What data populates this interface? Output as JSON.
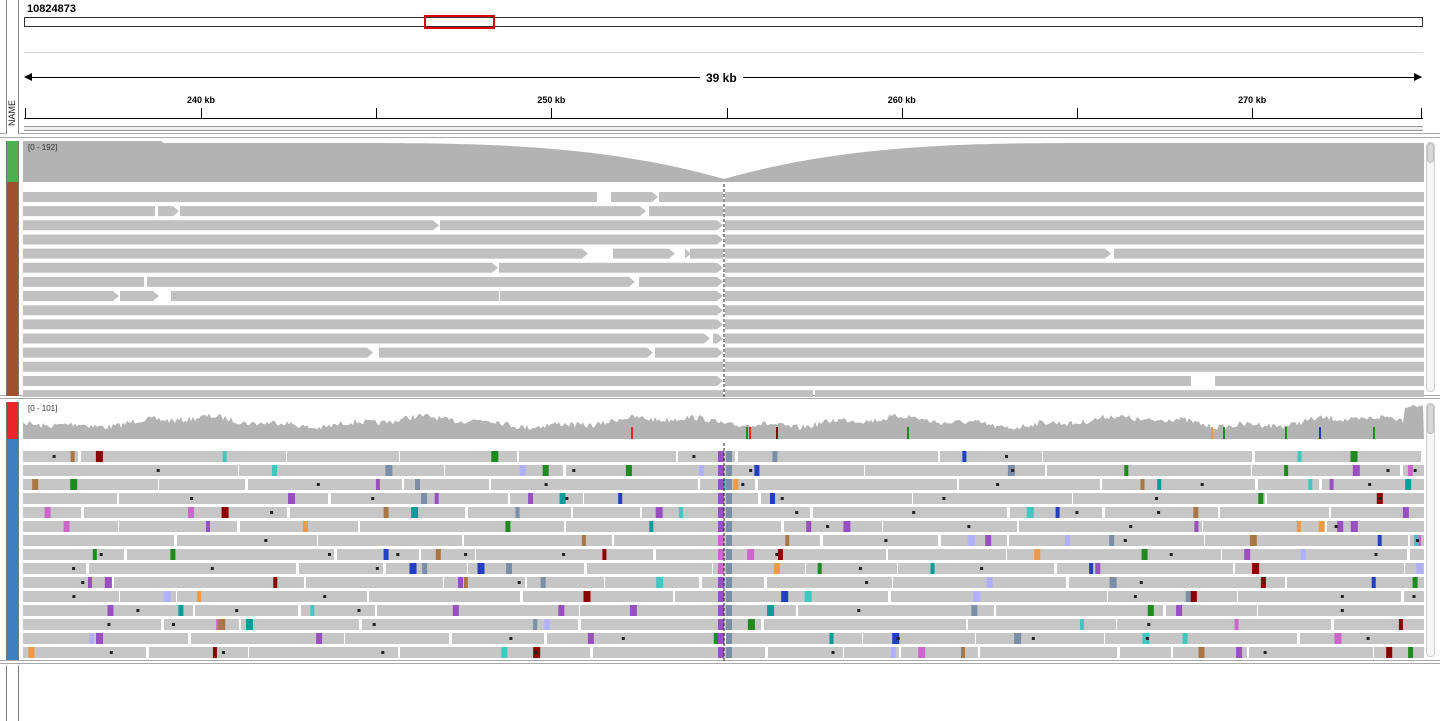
{
  "header": {
    "locus": "10824873",
    "name_column_label": "NAME",
    "span_label": "39 kb",
    "viewport_box": {
      "start_fraction": 0.286,
      "end_fraction": 0.337
    },
    "ruler_ticks": [
      {
        "label": "240 kb",
        "major": true
      },
      {
        "label": "",
        "major": false
      },
      {
        "label": "250 kb",
        "major": true
      },
      {
        "label": "",
        "major": false
      },
      {
        "label": "260 kb",
        "major": true
      },
      {
        "label": "",
        "major": false
      },
      {
        "label": "270 kb",
        "major": true
      }
    ]
  },
  "tracks": [
    {
      "id": "track-1",
      "strip_colors": {
        "coverage": "#4caf50",
        "alignments": "#a0522d"
      },
      "coverage_range": "[0 - 192]",
      "coverage_color": "#b3b3b3",
      "read_color": "#c0c0c0",
      "scroll_thumb_fraction": 0.08
    },
    {
      "id": "track-2",
      "strip_colors": {
        "coverage": "#e8262b",
        "alignments": "#3f7fbf"
      },
      "coverage_range": "[0 - 101]",
      "coverage_color": "#b3b3b3",
      "read_color": "#c6c6c6",
      "mismatch_colors": [
        "#1f8a1f",
        "#0c9b9b",
        "#2040c0",
        "#8b0000",
        "#40c8c0",
        "#cc66cc",
        "#ee9944",
        "#7a8ea8",
        "#b0b0ff",
        "#9a4fc0",
        "#aa7744"
      ],
      "scroll_thumb_fraction": 0.12
    },
    {
      "id": "track-3",
      "strip_colors": {
        "coverage": "#ffffff",
        "alignments": "#ffffff"
      }
    }
  ]
}
